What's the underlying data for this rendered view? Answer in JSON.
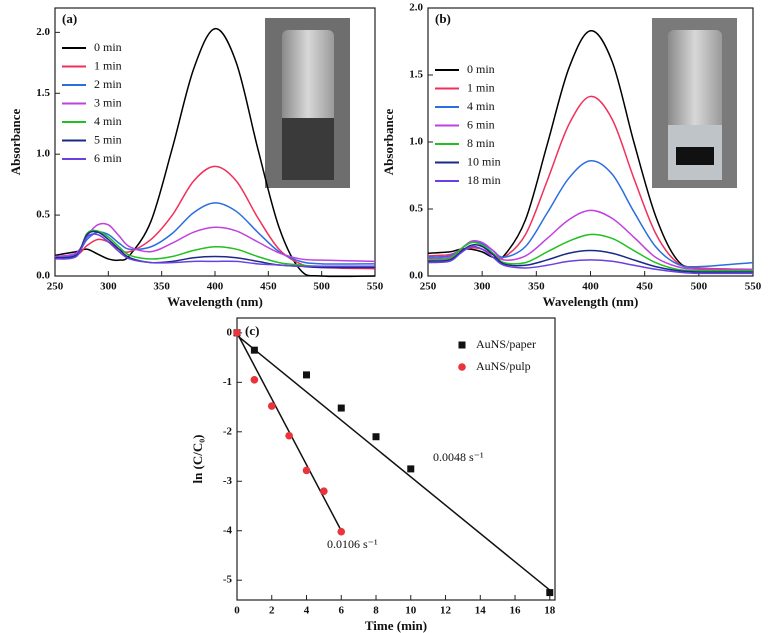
{
  "chart_data": [
    {
      "type": "line",
      "panel": "(a)",
      "xlabel": "Wavelength (nm)",
      "ylabel": "Absorbance",
      "x": [
        250,
        270,
        280,
        290,
        300,
        310,
        320,
        340,
        360,
        380,
        400,
        420,
        440,
        460,
        480,
        500,
        550
      ],
      "xlim": [
        250,
        550
      ],
      "xticks": [
        250,
        300,
        350,
        400,
        450,
        500,
        550
      ],
      "ylim": [
        0,
        2.2
      ],
      "yticks": [
        {
          "value": 0,
          "label": "0.0"
        },
        {
          "value": 0.5,
          "label": "0.5"
        },
        {
          "value": 1,
          "label": "1.0"
        },
        {
          "value": 1.5,
          "label": "1.5"
        },
        {
          "value": 2,
          "label": "2.0"
        }
      ],
      "series": [
        {
          "name": "0 min",
          "color": "#000000",
          "values": [
            0.17,
            0.2,
            0.22,
            0.18,
            0.14,
            0.13,
            0.17,
            0.45,
            1.05,
            1.7,
            2.03,
            1.75,
            1.05,
            0.4,
            0.05,
            0,
            0
          ]
        },
        {
          "name": "1 min",
          "color": "#f0305a",
          "values": [
            0.15,
            0.17,
            0.25,
            0.3,
            0.28,
            0.22,
            0.2,
            0.3,
            0.5,
            0.78,
            0.9,
            0.78,
            0.48,
            0.22,
            0.1,
            0.07,
            0.06
          ]
        },
        {
          "name": "2 min",
          "color": "#2a6ee0",
          "values": [
            0.15,
            0.18,
            0.3,
            0.36,
            0.34,
            0.27,
            0.22,
            0.24,
            0.35,
            0.52,
            0.6,
            0.53,
            0.36,
            0.2,
            0.12,
            0.1,
            0.1
          ]
        },
        {
          "name": "3 min",
          "color": "#c040e0",
          "values": [
            0.16,
            0.19,
            0.33,
            0.42,
            0.42,
            0.33,
            0.24,
            0.2,
            0.27,
            0.36,
            0.4,
            0.37,
            0.28,
            0.19,
            0.14,
            0.13,
            0.12
          ]
        },
        {
          "name": "4 min",
          "color": "#20c020",
          "values": [
            0.15,
            0.17,
            0.35,
            0.37,
            0.32,
            0.24,
            0.17,
            0.14,
            0.16,
            0.21,
            0.24,
            0.22,
            0.16,
            0.11,
            0.09,
            0.08,
            0.08
          ]
        },
        {
          "name": "5 min",
          "color": "#1a2a8a",
          "values": [
            0.15,
            0.17,
            0.34,
            0.36,
            0.3,
            0.22,
            0.15,
            0.11,
            0.12,
            0.15,
            0.16,
            0.15,
            0.12,
            0.09,
            0.08,
            0.07,
            0.07
          ]
        },
        {
          "name": "6 min",
          "color": "#6a40e0",
          "values": [
            0.14,
            0.16,
            0.32,
            0.34,
            0.28,
            0.2,
            0.14,
            0.11,
            0.11,
            0.12,
            0.12,
            0.12,
            0.1,
            0.09,
            0.08,
            0.08,
            0.08
          ]
        }
      ]
    },
    {
      "type": "line",
      "panel": "(b)",
      "xlabel": "Wavelength (nm)",
      "ylabel": "Absorbance",
      "x": [
        250,
        270,
        280,
        290,
        300,
        310,
        320,
        340,
        360,
        380,
        400,
        420,
        440,
        460,
        480,
        500,
        550
      ],
      "xlim": [
        250,
        550
      ],
      "xticks": [
        250,
        300,
        350,
        400,
        450,
        500,
        550
      ],
      "ylim": [
        0,
        2
      ],
      "yticks": [
        {
          "value": 0,
          "label": "0.0"
        },
        {
          "value": 0.5,
          "label": "0.5"
        },
        {
          "value": 1,
          "label": "1.0"
        },
        {
          "value": 1.5,
          "label": "1.5"
        },
        {
          "value": 2,
          "label": "2.0"
        }
      ],
      "series": [
        {
          "name": "0 min",
          "color": "#000000",
          "values": [
            0.17,
            0.18,
            0.2,
            0.2,
            0.18,
            0.14,
            0.15,
            0.42,
            0.98,
            1.55,
            1.83,
            1.6,
            1.0,
            0.45,
            0.12,
            0.06,
            0.05
          ]
        },
        {
          "name": "1 min",
          "color": "#f0305a",
          "values": [
            0.15,
            0.16,
            0.19,
            0.21,
            0.2,
            0.16,
            0.14,
            0.31,
            0.71,
            1.13,
            1.34,
            1.17,
            0.73,
            0.32,
            0.1,
            0.06,
            0.05
          ]
        },
        {
          "name": "4 min",
          "color": "#2a6ee0",
          "values": [
            0.14,
            0.15,
            0.2,
            0.25,
            0.24,
            0.19,
            0.14,
            0.22,
            0.47,
            0.73,
            0.86,
            0.76,
            0.48,
            0.22,
            0.09,
            0.07,
            0.1
          ]
        },
        {
          "name": "6 min",
          "color": "#c040e0",
          "values": [
            0.13,
            0.14,
            0.2,
            0.26,
            0.25,
            0.19,
            0.12,
            0.15,
            0.28,
            0.42,
            0.49,
            0.43,
            0.29,
            0.14,
            0.07,
            0.05,
            0.05
          ]
        },
        {
          "name": "8 min",
          "color": "#20c020",
          "values": [
            0.12,
            0.13,
            0.2,
            0.25,
            0.23,
            0.17,
            0.1,
            0.1,
            0.18,
            0.26,
            0.31,
            0.28,
            0.19,
            0.1,
            0.05,
            0.04,
            0.04
          ]
        },
        {
          "name": "10 min",
          "color": "#1a2a8a",
          "values": [
            0.11,
            0.12,
            0.18,
            0.23,
            0.22,
            0.16,
            0.09,
            0.08,
            0.12,
            0.17,
            0.19,
            0.17,
            0.12,
            0.07,
            0.04,
            0.03,
            0.03
          ]
        },
        {
          "name": "18 min",
          "color": "#6a40e0",
          "values": [
            0.1,
            0.11,
            0.17,
            0.22,
            0.2,
            0.14,
            0.08,
            0.06,
            0.08,
            0.11,
            0.12,
            0.11,
            0.08,
            0.05,
            0.03,
            0.02,
            0.02
          ]
        }
      ]
    },
    {
      "type": "scatter",
      "panel": "(c)",
      "xlabel": "Time (min)",
      "ylabel": "ln (C/C₀)",
      "xlim": [
        0,
        18.3
      ],
      "xticks": [
        0,
        2,
        4,
        6,
        8,
        10,
        12,
        14,
        16,
        18
      ],
      "ylim": [
        -5.4,
        0.3
      ],
      "yticks": [
        0,
        -1,
        -2,
        -3,
        -4,
        -5
      ],
      "series": [
        {
          "name": "AuNS/paper",
          "color": "#111111",
          "marker": "square",
          "x": [
            0,
            1,
            4,
            6,
            8,
            10,
            18
          ],
          "values": [
            0,
            -0.35,
            -0.85,
            -1.52,
            -2.1,
            -2.75,
            -5.25
          ]
        },
        {
          "name": "AuNS/pulp",
          "color": "#e8343a",
          "marker": "circle",
          "x": [
            0,
            1,
            2,
            3,
            4,
            5,
            6
          ],
          "values": [
            0,
            -0.95,
            -1.48,
            -2.08,
            -2.78,
            -3.2,
            -4.02
          ]
        }
      ],
      "fit_lines": [
        {
          "x": [
            0,
            18
          ],
          "values": [
            -0.05,
            -5.2
          ]
        },
        {
          "x": [
            0,
            6
          ],
          "values": [
            0,
            -4.0
          ]
        }
      ],
      "annotations": [
        "0.0048 s⁻¹",
        "0.0106 s⁻¹"
      ]
    }
  ]
}
